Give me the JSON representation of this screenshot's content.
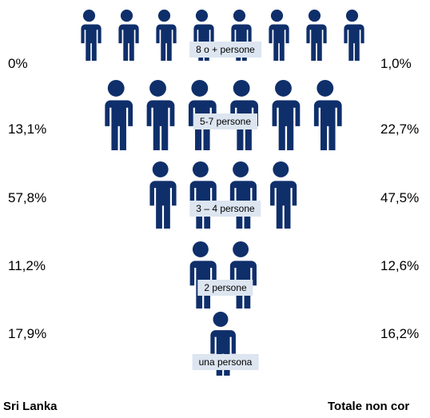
{
  "rows": [
    {
      "label": "8 o + persone",
      "left": "0%",
      "right": "1,0%"
    },
    {
      "label": "5-7 persone",
      "left": "13,1%",
      "right": "22,7%"
    },
    {
      "label": "3 – 4  persone",
      "left": "57,8%",
      "right": "47,5%"
    },
    {
      "label": "2 persone",
      "left": "11,2%",
      "right": "12,6%"
    },
    {
      "label": "una persona",
      "left": "17,9%",
      "right": "16,2%"
    }
  ],
  "footer": {
    "left": "Sri Lanka",
    "right": "Totale non cor"
  }
}
